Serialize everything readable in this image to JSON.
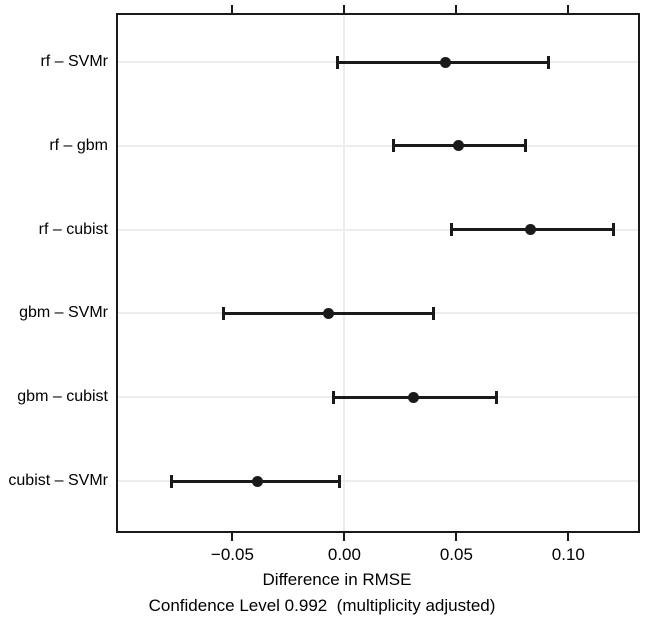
{
  "chart_data": {
    "type": "dotplot_ci",
    "title": "",
    "xlabel": "Difference in RMSE",
    "subtitle": "Confidence Level 0.992  (multiplicity adjusted)",
    "x_ticks": [
      -0.05,
      0,
      0.05,
      0.1
    ],
    "x_tick_labels": [
      "−0.05",
      "0.00",
      "0.05",
      "0.10"
    ],
    "xlim": [
      -0.102,
      0.132
    ],
    "reference_line_x": 0,
    "grid": "per-row horizontal lines + vertical line at zero",
    "legend": "none",
    "comparisons": [
      {
        "label": "rf – SVMr",
        "estimate": 0.045,
        "lower": -0.003,
        "upper": 0.091
      },
      {
        "label": "rf – gbm",
        "estimate": 0.051,
        "lower": 0.022,
        "upper": 0.081
      },
      {
        "label": "rf – cubist",
        "estimate": 0.083,
        "lower": 0.048,
        "upper": 0.12
      },
      {
        "label": "gbm – SVMr",
        "estimate": -0.007,
        "lower": -0.054,
        "upper": 0.04
      },
      {
        "label": "gbm – cubist",
        "estimate": 0.031,
        "lower": -0.005,
        "upper": 0.068
      },
      {
        "label": "cubist – SVMr",
        "estimate": -0.039,
        "lower": -0.077,
        "upper": -0.002
      }
    ],
    "colors": {
      "point": "#1a1a1a",
      "interval": "#1a1a1a",
      "frame": "#1a1a1a",
      "grid": "#ededed",
      "background": "#ffffff",
      "text": "#000000"
    }
  }
}
